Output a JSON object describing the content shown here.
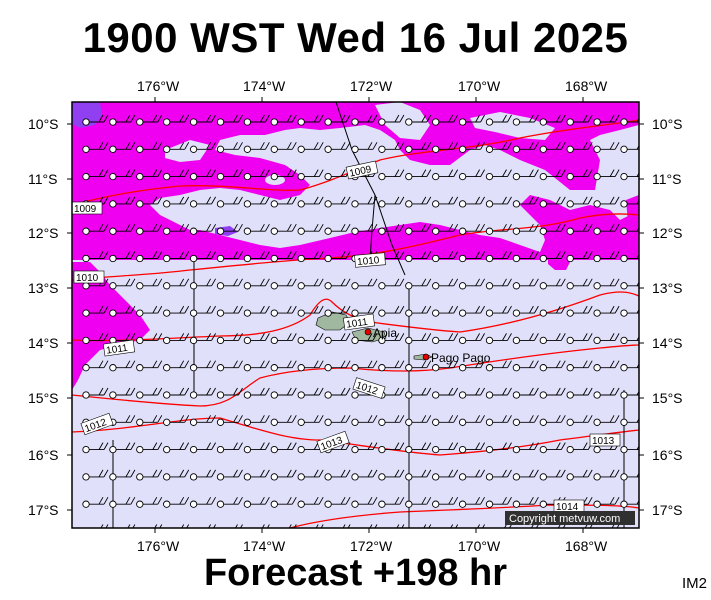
{
  "title": "1900 WST Wed 16 Jul 2025",
  "footer": "Forecast +198 hr",
  "image_code": "IM2",
  "copyright": "Copyright metvuw.com",
  "lon_labels": [
    "176°W",
    "174°W",
    "172°W",
    "170°W",
    "168°W"
  ],
  "lat_labels": [
    "10°S",
    "11°S",
    "12°S",
    "13°S",
    "14°S",
    "15°S",
    "16°S",
    "17°S"
  ],
  "places": [
    {
      "name": "Apia"
    },
    {
      "name": "Pago Pago"
    }
  ],
  "isobar_labels": [
    "1009",
    "1009",
    "1010",
    "1010",
    "1011",
    "1011",
    "1012",
    "1012",
    "1013",
    "1013",
    "1014"
  ],
  "colors": {
    "background_rain": "#e0e0fa",
    "rain_heavy": "#f000f0",
    "rain_very_heavy": "#9040f0",
    "isobar": "#ff0000",
    "front_line": "#000000",
    "land": "#a0b8a0"
  }
}
